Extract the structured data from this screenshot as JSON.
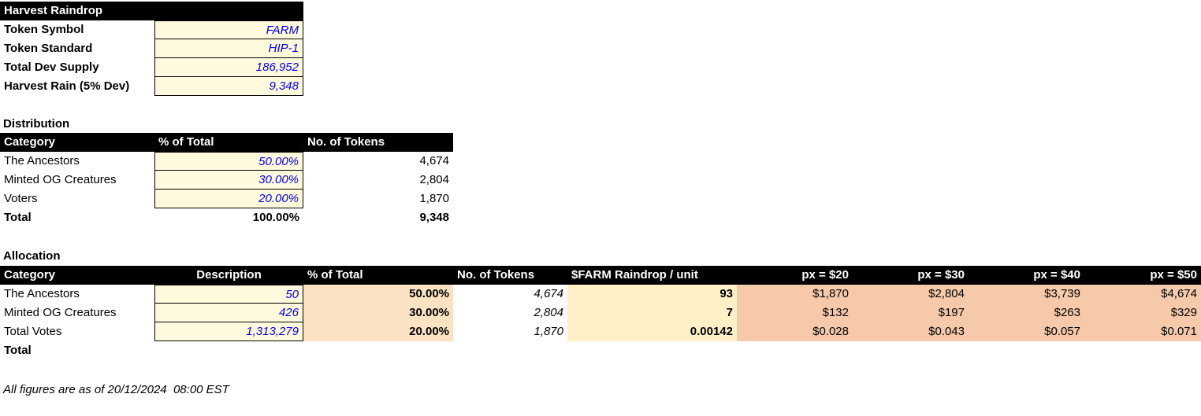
{
  "colors": {
    "header-bg": "#000000",
    "header-text": "#ffffff",
    "input-bg": "#fffade",
    "input-text": "#0000ee",
    "pct-bg": "#fbe2c3",
    "unit-bg": "#fff0c8",
    "px-bg": "#f6c9ab",
    "border": "#000000"
  },
  "summary": {
    "title": "Harvest Raindrop",
    "rows": [
      {
        "label": "Token Symbol",
        "value": "FARM"
      },
      {
        "label": "Token Standard",
        "value": "HIP-1"
      },
      {
        "label": "Total Dev Supply",
        "value": "186,952"
      },
      {
        "label": "Harvest Rain (5% Dev)",
        "value": "9,348"
      }
    ]
  },
  "distribution": {
    "title": "Distribution",
    "headers": {
      "category": "Category",
      "pct": "% of Total",
      "tokens": "No. of Tokens"
    },
    "rows": [
      {
        "category": "The Ancestors",
        "pct": "50.00%",
        "tokens": "4,674"
      },
      {
        "category": "Minted OG Creatures",
        "pct": "30.00%",
        "tokens": "2,804"
      },
      {
        "category": "Voters",
        "pct": "20.00%",
        "tokens": "1,870"
      }
    ],
    "total": {
      "label": "Total",
      "pct": "100.00%",
      "tokens": "9,348"
    }
  },
  "allocation": {
    "title": "Allocation",
    "headers": {
      "category": "Category",
      "description": "Description",
      "pct": "% of Total",
      "tokens": "No. of Tokens",
      "per_unit": "$FARM Raindrop / unit",
      "px20": "px = $20",
      "px30": "px = $30",
      "px40": "px = $40",
      "px50": "px = $50"
    },
    "rows": [
      {
        "category": "The Ancestors",
        "description": "50",
        "pct": "50.00%",
        "tokens": "4,674",
        "per_unit": "93",
        "px20": "$1,870",
        "px30": "$2,804",
        "px40": "$3,739",
        "px50": "$4,674"
      },
      {
        "category": "Minted OG Creatures",
        "description": "426",
        "pct": "30.00%",
        "tokens": "2,804",
        "per_unit": "7",
        "px20": "$132",
        "px30": "$197",
        "px40": "$263",
        "px50": "$329"
      },
      {
        "category": "Total Votes",
        "description": "1,313,279",
        "pct": "20.00%",
        "tokens": "1,870",
        "per_unit": "0.00142",
        "px20": "$0.028",
        "px30": "$0.043",
        "px40": "$0.057",
        "px50": "$0.071"
      }
    ],
    "total_label": "Total"
  },
  "footer": {
    "text": "All figures are as of 20/12/2024  08:00 EST"
  }
}
